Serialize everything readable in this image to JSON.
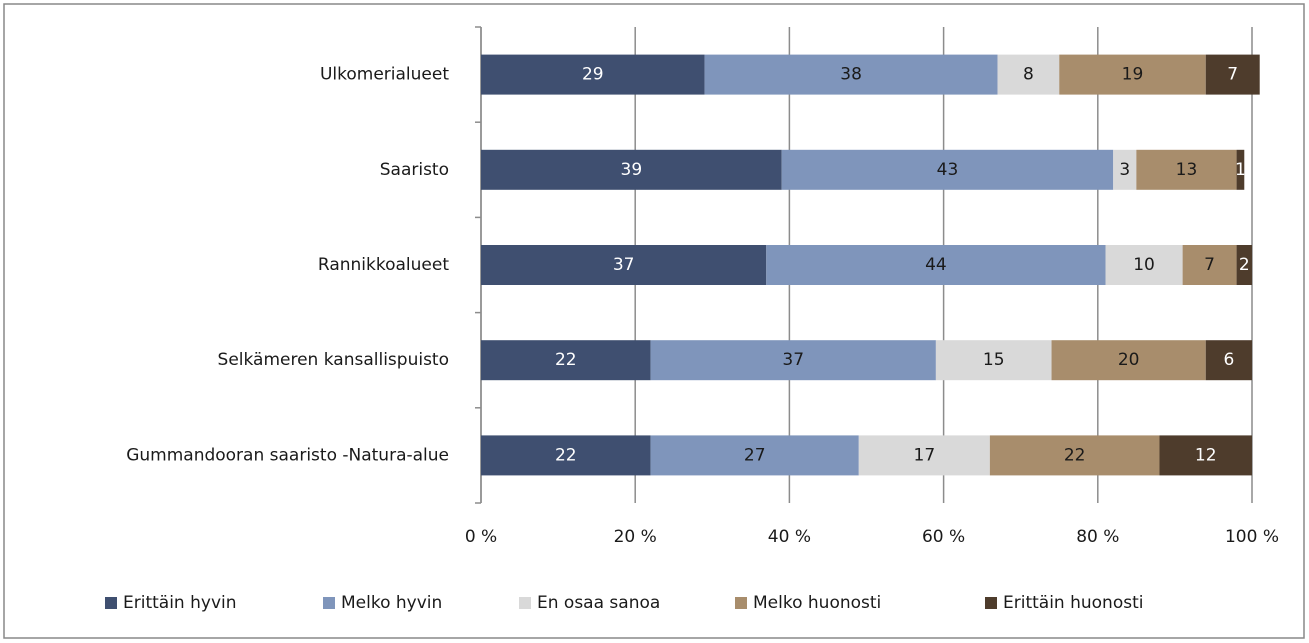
{
  "chart_data": {
    "type": "stacked_barh",
    "categories": [
      "Ulkomerialueet",
      "Saaristo",
      "Rannikkoalueet",
      "Selkämeren kansallispuisto",
      "Gummandooran saaristo -Natura-alue"
    ],
    "series": [
      {
        "name": "Erittäin hyvin",
        "color": "#3f4f70",
        "label_color": "#ffffff",
        "values": [
          29,
          39,
          37,
          22,
          22
        ]
      },
      {
        "name": "Melko hyvin",
        "color": "#7f95bb",
        "label_color": "#1a1a1a",
        "values": [
          38,
          43,
          44,
          37,
          27
        ]
      },
      {
        "name": "En osaa sanoa",
        "color": "#d9d9d9",
        "label_color": "#1a1a1a",
        "values": [
          8,
          3,
          10,
          15,
          17
        ]
      },
      {
        "name": "Melko huonosti",
        "color": "#a88d6c",
        "label_color": "#1a1a1a",
        "values": [
          19,
          13,
          7,
          20,
          22
        ]
      },
      {
        "name": "Erittäin huonosti",
        "color": "#4e3c2c",
        "label_color": "#ffffff",
        "values": [
          7,
          1,
          2,
          6,
          12
        ]
      }
    ],
    "xlim": [
      0,
      100
    ],
    "xticks": [
      {
        "value": 0,
        "label": "0 %"
      },
      {
        "value": 20,
        "label": "20 %"
      },
      {
        "value": 40,
        "label": "40 %"
      },
      {
        "value": 60,
        "label": "60 %"
      },
      {
        "value": 80,
        "label": "80 %"
      },
      {
        "value": 100,
        "label": "100 %"
      }
    ],
    "grid": true,
    "legend": "bottom"
  }
}
